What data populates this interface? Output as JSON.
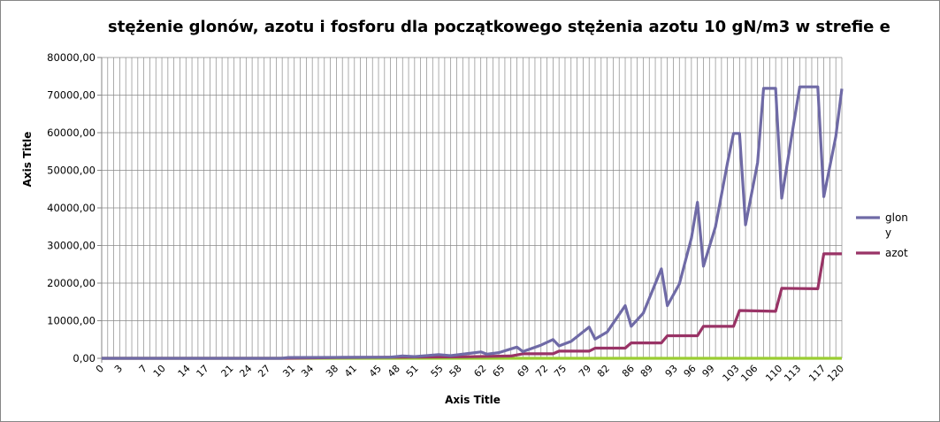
{
  "chart_data": {
    "type": "line",
    "title": "stężenie glonów, azotu i fosforu dla początkowego stężenia azotu 10 gN/m3 w strefie e",
    "xlabel": "Axis Title",
    "ylabel": "Axis Title",
    "ylim": [
      0,
      80000
    ],
    "yticks": [
      "0,00",
      "10000,00",
      "20000,00",
      "30000,00",
      "40000,00",
      "50000,00",
      "60000,00",
      "70000,00",
      "80000,00"
    ],
    "xlim": [
      0,
      120
    ],
    "xticks": [
      "0",
      "3",
      "7",
      "10",
      "14",
      "17",
      "21",
      "24",
      "27",
      "31",
      "34",
      "38",
      "41",
      "45",
      "48",
      "51",
      "55",
      "58",
      "62",
      "65",
      "69",
      "72",
      "75",
      "79",
      "82",
      "86",
      "89",
      "93",
      "96",
      "99",
      "103",
      "106",
      "110",
      "113",
      "117",
      "120"
    ],
    "grid": true,
    "legend_position": "right",
    "series": [
      {
        "name": "glon y",
        "color": "#6f6aa6",
        "points": [
          [
            0,
            0
          ],
          [
            30,
            0
          ],
          [
            31,
            200
          ],
          [
            40,
            250
          ],
          [
            48,
            300
          ],
          [
            50,
            600
          ],
          [
            52,
            450
          ],
          [
            56,
            1000
          ],
          [
            58,
            700
          ],
          [
            61,
            1300
          ],
          [
            63,
            1700
          ],
          [
            64,
            1100
          ],
          [
            66,
            1500
          ],
          [
            69,
            3000
          ],
          [
            70,
            1800
          ],
          [
            73,
            3500
          ],
          [
            75,
            5000
          ],
          [
            76,
            3300
          ],
          [
            78,
            4500
          ],
          [
            81,
            8300
          ],
          [
            82,
            5100
          ],
          [
            84,
            7000
          ],
          [
            87,
            14000
          ],
          [
            88,
            8500
          ],
          [
            90,
            12000
          ],
          [
            93,
            23800
          ],
          [
            94,
            14000
          ],
          [
            96,
            19800
          ],
          [
            98,
            32000
          ],
          [
            99,
            41500
          ],
          [
            100,
            24500
          ],
          [
            102,
            35000
          ],
          [
            104,
            52000
          ],
          [
            105,
            59800
          ],
          [
            106,
            59800
          ],
          [
            107,
            35500
          ],
          [
            109,
            52000
          ],
          [
            110,
            71800
          ],
          [
            112,
            71800
          ],
          [
            113,
            42600
          ],
          [
            115,
            62500
          ],
          [
            116,
            72200
          ],
          [
            119,
            72200
          ],
          [
            120,
            43000
          ],
          [
            122,
            59000
          ],
          [
            123,
            71700
          ]
        ]
      },
      {
        "name": "azot",
        "color": "#993366",
        "points": [
          [
            0,
            0
          ],
          [
            30,
            0
          ],
          [
            40,
            200
          ],
          [
            50,
            300
          ],
          [
            60,
            400
          ],
          [
            68,
            600
          ],
          [
            70,
            1200
          ],
          [
            75,
            1200
          ],
          [
            76,
            1900
          ],
          [
            81,
            1900
          ],
          [
            82,
            2700
          ],
          [
            87,
            2700
          ],
          [
            88,
            4100
          ],
          [
            93,
            4100
          ],
          [
            94,
            6000
          ],
          [
            99,
            6000
          ],
          [
            100,
            8500
          ],
          [
            105,
            8500
          ],
          [
            106,
            12700
          ],
          [
            112,
            12500
          ],
          [
            113,
            18600
          ],
          [
            119,
            18500
          ],
          [
            120,
            27800
          ],
          [
            123,
            27800
          ]
        ]
      },
      {
        "name": "",
        "color": "#9acd32",
        "points": [
          [
            0,
            0
          ],
          [
            123,
            0
          ]
        ]
      }
    ]
  }
}
